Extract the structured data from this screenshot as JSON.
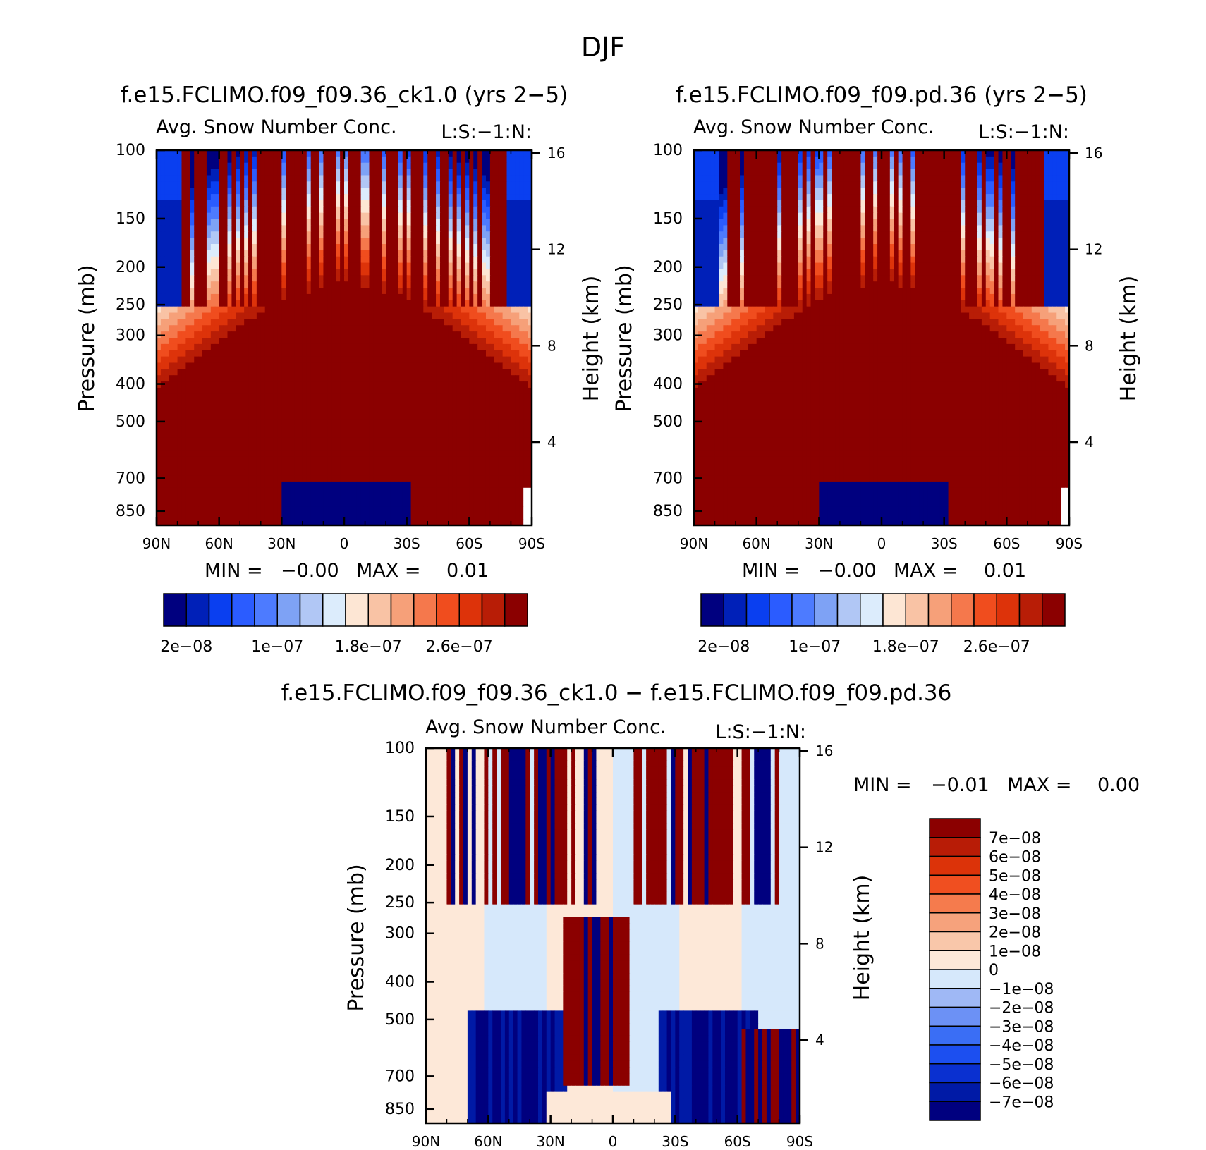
{
  "figure": {
    "title": "DJF"
  },
  "palettes": {
    "main": [
      "#00007f",
      "#0020b8",
      "#0a3ff0",
      "#2b5cff",
      "#4d7bff",
      "#7ea2f5",
      "#b1c7f5",
      "#dcecfc",
      "#fde6d4",
      "#f9c3a5",
      "#f6a079",
      "#f5784c",
      "#f04d1e",
      "#dd330a",
      "#b81d06",
      "#8b0000"
    ],
    "diff": [
      "#00007f",
      "#001aa6",
      "#0a30d0",
      "#1c4ff0",
      "#3a6ef5",
      "#6c91f5",
      "#9fb8f5",
      "#d6e8fb",
      "#fde8d8",
      "#f9c7aa",
      "#f6a27c",
      "#f57b4d",
      "#f04f20",
      "#dc3309",
      "#b81c06",
      "#8b0000"
    ]
  },
  "chart_data": [
    {
      "type": "heatmap",
      "title": "f.e15.FCLIMO.f09_f09.36_ck1.0 (yrs 2−5)",
      "subtitle": "Avg. Snow Number Conc.",
      "units": "L:S:−1:N:",
      "xlabel": "",
      "ylabel": "Pressure (mb)",
      "ylabel_right": "Height (km)",
      "x_ticks": [
        "90N",
        "60N",
        "30N",
        "0",
        "30S",
        "60S",
        "90S"
      ],
      "x_range": [
        90,
        -90
      ],
      "y_ticks": [
        100,
        150,
        200,
        250,
        300,
        400,
        500,
        700,
        850
      ],
      "y_range": [
        100,
        925
      ],
      "right_ticks": [
        16,
        12,
        8,
        4
      ],
      "min_max": {
        "min_label": "MIN =",
        "min": "−0.00",
        "max_label": "MAX =",
        "max": "0.01"
      },
      "colorbar": {
        "orientation": "horizontal",
        "levels": 16,
        "labels": [
          "2e−08",
          "1e−07",
          "1.8e−07",
          "2.6e−07"
        ]
      },
      "pattern": "control"
    },
    {
      "type": "heatmap",
      "title": "f.e15.FCLIMO.f09_f09.pd.36 (yrs 2−5)",
      "subtitle": "Avg. Snow Number Conc.",
      "units": "L:S:−1:N:",
      "xlabel": "",
      "ylabel": "Pressure (mb)",
      "ylabel_right": "Height (km)",
      "x_ticks": [
        "90N",
        "60N",
        "30N",
        "0",
        "30S",
        "60S",
        "90S"
      ],
      "x_range": [
        90,
        -90
      ],
      "y_ticks": [
        100,
        150,
        200,
        250,
        300,
        400,
        500,
        700,
        850
      ],
      "y_range": [
        100,
        925
      ],
      "right_ticks": [
        16,
        12,
        8,
        4
      ],
      "min_max": {
        "min_label": "MIN =",
        "min": "−0.00",
        "max_label": "MAX =",
        "max": "0.01"
      },
      "colorbar": {
        "orientation": "horizontal",
        "levels": 16,
        "labels": [
          "2e−08",
          "1e−07",
          "1.8e−07",
          "2.6e−07"
        ]
      },
      "pattern": "pd"
    },
    {
      "type": "heatmap",
      "title": "f.e15.FCLIMO.f09_f09.36_ck1.0 − f.e15.FCLIMO.f09_f09.pd.36",
      "subtitle": "Avg. Snow Number Conc.",
      "units": "L:S:−1:N:",
      "xlabel": "",
      "ylabel": "Pressure (mb)",
      "ylabel_right": "Height (km)",
      "x_ticks": [
        "90N",
        "60N",
        "30N",
        "0",
        "30S",
        "60S",
        "90S"
      ],
      "x_range": [
        90,
        -90
      ],
      "y_ticks": [
        100,
        150,
        200,
        250,
        300,
        400,
        500,
        700,
        850
      ],
      "y_range": [
        100,
        925
      ],
      "right_ticks": [
        16,
        12,
        8,
        4
      ],
      "min_max": {
        "min_label": "MIN =",
        "min": "−0.01",
        "max_label": "MAX =",
        "max": "0.00"
      },
      "colorbar": {
        "orientation": "vertical",
        "levels": 16,
        "labels": [
          "7e−08",
          "6e−08",
          "5e−08",
          "4e−08",
          "3e−08",
          "2e−08",
          "1e−08",
          "0",
          "−1e−08",
          "−2e−08",
          "−3e−08",
          "−4e−08",
          "−5e−08",
          "−6e−08",
          "−7e−08"
        ]
      },
      "pattern": "diff"
    }
  ]
}
